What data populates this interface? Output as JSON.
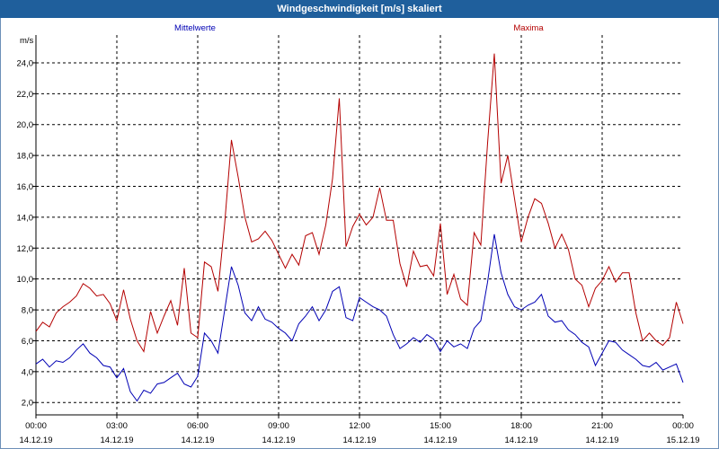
{
  "window": {
    "title": "Windgeschwindigkeit [m/s] skaliert"
  },
  "colors": {
    "mittelwerte": "#0000b4",
    "maxima": "#b40000",
    "titlebar": "#1f5f9c"
  },
  "chart_data": {
    "type": "line",
    "title": "Windgeschwindigkeit [m/s] skaliert",
    "ylabel": "m/s",
    "xlabel": "",
    "ylim": [
      1.2,
      25.8
    ],
    "y_ticks": [
      "2,0",
      "4,0",
      "6,0",
      "8,0",
      "10,0",
      "12,0",
      "14,0",
      "16,0",
      "18,0",
      "20,0",
      "22,0",
      "24,0"
    ],
    "x_ticks": [
      {
        "time": "00:00",
        "date": "14.12.19"
      },
      {
        "time": "03:00",
        "date": "14.12.19"
      },
      {
        "time": "06:00",
        "date": "14.12.19"
      },
      {
        "time": "09:00",
        "date": "14.12.19"
      },
      {
        "time": "12:00",
        "date": "14.12.19"
      },
      {
        "time": "15:00",
        "date": "14.12.19"
      },
      {
        "time": "18:00",
        "date": "14.12.19"
      },
      {
        "time": "21:00",
        "date": "14.12.19"
      },
      {
        "time": "00:00",
        "date": "15.12.19"
      }
    ],
    "grid": true,
    "series": [
      {
        "name": "Mittelwerte",
        "points": [
          [
            0,
            4.5
          ],
          [
            0.25,
            4.8
          ],
          [
            0.5,
            4.3
          ],
          [
            0.75,
            4.7
          ],
          [
            1,
            4.6
          ],
          [
            1.25,
            4.9
          ],
          [
            1.5,
            5.4
          ],
          [
            1.75,
            5.8
          ],
          [
            2,
            5.2
          ],
          [
            2.25,
            4.9
          ],
          [
            2.5,
            4.4
          ],
          [
            2.75,
            4.3
          ],
          [
            3,
            3.6
          ],
          [
            3.25,
            4.2
          ],
          [
            3.5,
            2.7
          ],
          [
            3.75,
            2.1
          ],
          [
            4,
            2.8
          ],
          [
            4.25,
            2.6
          ],
          [
            4.5,
            3.2
          ],
          [
            4.75,
            3.3
          ],
          [
            5,
            3.6
          ],
          [
            5.25,
            3.9
          ],
          [
            5.5,
            3.2
          ],
          [
            5.75,
            3.0
          ],
          [
            6,
            3.7
          ],
          [
            6.25,
            6.5
          ],
          [
            6.5,
            6.0
          ],
          [
            6.75,
            5.2
          ],
          [
            7,
            8.0
          ],
          [
            7.25,
            10.8
          ],
          [
            7.5,
            9.6
          ],
          [
            7.75,
            7.8
          ],
          [
            8,
            7.3
          ],
          [
            8.25,
            8.2
          ],
          [
            8.5,
            7.4
          ],
          [
            8.75,
            7.2
          ],
          [
            9,
            6.8
          ],
          [
            9.25,
            6.5
          ],
          [
            9.5,
            6.0
          ],
          [
            9.75,
            7.1
          ],
          [
            10,
            7.6
          ],
          [
            10.25,
            8.2
          ],
          [
            10.5,
            7.3
          ],
          [
            10.75,
            8.0
          ],
          [
            11,
            9.2
          ],
          [
            11.25,
            9.5
          ],
          [
            11.5,
            7.5
          ],
          [
            11.75,
            7.3
          ],
          [
            12,
            8.8
          ],
          [
            12.25,
            8.5
          ],
          [
            12.5,
            8.2
          ],
          [
            12.75,
            8.0
          ],
          [
            13,
            7.6
          ],
          [
            13.25,
            6.4
          ],
          [
            13.5,
            5.5
          ],
          [
            13.75,
            5.8
          ],
          [
            14,
            6.2
          ],
          [
            14.25,
            5.9
          ],
          [
            14.5,
            6.4
          ],
          [
            14.75,
            6.1
          ],
          [
            15,
            5.3
          ],
          [
            15.25,
            6.0
          ],
          [
            15.5,
            5.6
          ],
          [
            15.75,
            5.8
          ],
          [
            16,
            5.5
          ],
          [
            16.25,
            6.8
          ],
          [
            16.5,
            7.3
          ],
          [
            16.75,
            9.8
          ],
          [
            17,
            12.9
          ],
          [
            17.25,
            10.4
          ],
          [
            17.5,
            9.0
          ],
          [
            17.75,
            8.2
          ],
          [
            18,
            8.0
          ],
          [
            18.25,
            8.3
          ],
          [
            18.5,
            8.5
          ],
          [
            18.75,
            9.0
          ],
          [
            19,
            7.6
          ],
          [
            19.25,
            7.2
          ],
          [
            19.5,
            7.3
          ],
          [
            19.75,
            6.7
          ],
          [
            20,
            6.4
          ],
          [
            20.25,
            5.9
          ],
          [
            20.5,
            5.6
          ],
          [
            20.75,
            4.4
          ],
          [
            21,
            5.2
          ],
          [
            21.25,
            6.0
          ],
          [
            21.5,
            5.9
          ],
          [
            21.75,
            5.4
          ],
          [
            22,
            5.1
          ],
          [
            22.25,
            4.8
          ],
          [
            22.5,
            4.4
          ],
          [
            22.75,
            4.3
          ],
          [
            23,
            4.6
          ],
          [
            23.25,
            4.1
          ],
          [
            23.5,
            4.3
          ],
          [
            23.75,
            4.5
          ],
          [
            24,
            3.3
          ]
        ]
      },
      {
        "name": "Maxima",
        "points": [
          [
            0,
            6.6
          ],
          [
            0.25,
            7.2
          ],
          [
            0.5,
            6.9
          ],
          [
            0.75,
            7.8
          ],
          [
            1,
            8.2
          ],
          [
            1.25,
            8.5
          ],
          [
            1.5,
            8.9
          ],
          [
            1.75,
            9.7
          ],
          [
            2,
            9.4
          ],
          [
            2.25,
            8.9
          ],
          [
            2.5,
            9.0
          ],
          [
            2.75,
            8.4
          ],
          [
            3,
            7.3
          ],
          [
            3.25,
            9.3
          ],
          [
            3.5,
            7.4
          ],
          [
            3.75,
            6.0
          ],
          [
            4,
            5.3
          ],
          [
            4.25,
            7.9
          ],
          [
            4.5,
            6.5
          ],
          [
            4.75,
            7.6
          ],
          [
            5,
            8.6
          ],
          [
            5.25,
            7.0
          ],
          [
            5.5,
            10.7
          ],
          [
            5.75,
            6.5
          ],
          [
            6,
            6.2
          ],
          [
            6.25,
            11.1
          ],
          [
            6.5,
            10.8
          ],
          [
            6.75,
            9.2
          ],
          [
            7,
            13.6
          ],
          [
            7.25,
            19.0
          ],
          [
            7.5,
            16.6
          ],
          [
            7.75,
            14.0
          ],
          [
            8,
            12.4
          ],
          [
            8.25,
            12.6
          ],
          [
            8.5,
            13.1
          ],
          [
            8.75,
            12.5
          ],
          [
            9,
            11.6
          ],
          [
            9.25,
            10.7
          ],
          [
            9.5,
            11.6
          ],
          [
            9.75,
            10.9
          ],
          [
            10,
            12.8
          ],
          [
            10.25,
            13.0
          ],
          [
            10.5,
            11.6
          ],
          [
            10.75,
            13.5
          ],
          [
            11,
            16.5
          ],
          [
            11.25,
            21.7
          ],
          [
            11.5,
            12.1
          ],
          [
            11.75,
            13.4
          ],
          [
            12,
            14.2
          ],
          [
            12.25,
            13.5
          ],
          [
            12.5,
            14.0
          ],
          [
            12.75,
            15.9
          ],
          [
            13,
            13.8
          ],
          [
            13.25,
            13.8
          ],
          [
            13.5,
            11.0
          ],
          [
            13.75,
            9.5
          ],
          [
            14,
            11.8
          ],
          [
            14.25,
            10.8
          ],
          [
            14.5,
            10.9
          ],
          [
            14.75,
            10.2
          ],
          [
            15,
            13.6
          ],
          [
            15.25,
            9.0
          ],
          [
            15.5,
            10.3
          ],
          [
            15.75,
            8.7
          ],
          [
            16,
            8.3
          ],
          [
            16.25,
            13.0
          ],
          [
            16.5,
            12.2
          ],
          [
            16.75,
            18.8
          ],
          [
            17,
            24.6
          ],
          [
            17.25,
            16.2
          ],
          [
            17.5,
            18.0
          ],
          [
            17.75,
            15.2
          ],
          [
            18,
            12.4
          ],
          [
            18.25,
            14.0
          ],
          [
            18.5,
            15.2
          ],
          [
            18.75,
            14.9
          ],
          [
            19,
            13.6
          ],
          [
            19.25,
            12.0
          ],
          [
            19.5,
            12.9
          ],
          [
            19.75,
            11.9
          ],
          [
            20,
            10.0
          ],
          [
            20.25,
            9.6
          ],
          [
            20.5,
            8.2
          ],
          [
            20.75,
            9.4
          ],
          [
            21,
            9.9
          ],
          [
            21.25,
            10.8
          ],
          [
            21.5,
            9.8
          ],
          [
            21.75,
            10.4
          ],
          [
            22,
            10.4
          ],
          [
            22.25,
            7.8
          ],
          [
            22.5,
            6.0
          ],
          [
            22.75,
            6.5
          ],
          [
            23,
            6.0
          ],
          [
            23.25,
            5.7
          ],
          [
            23.5,
            6.2
          ],
          [
            23.75,
            8.5
          ],
          [
            24,
            7.1
          ]
        ]
      }
    ]
  }
}
